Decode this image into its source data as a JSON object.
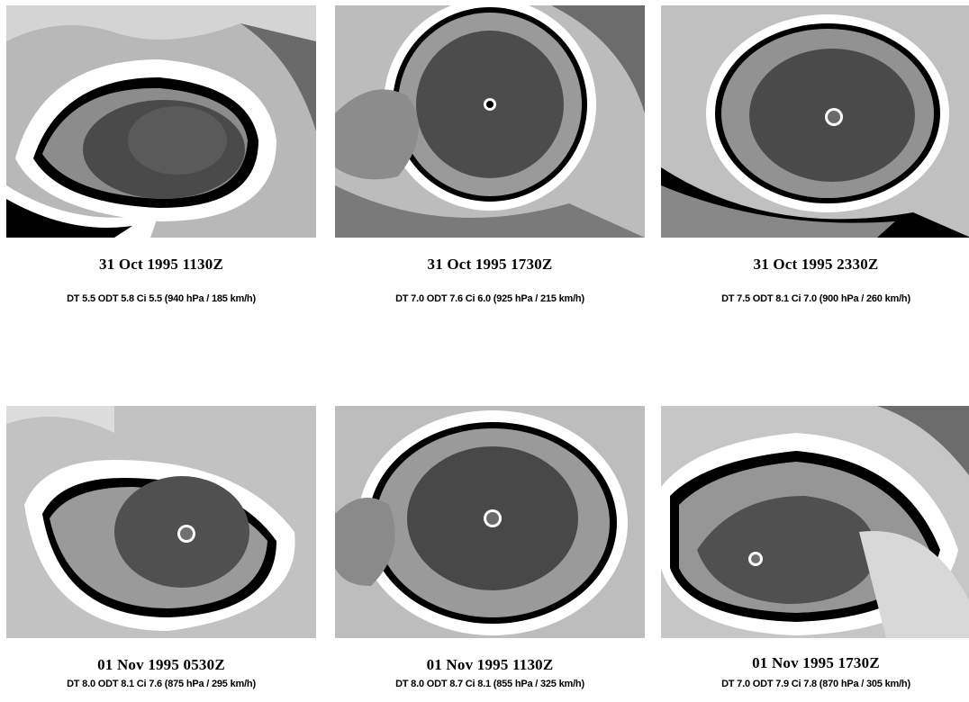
{
  "panels": [
    {
      "date": "31 Oct 1995 1130Z",
      "stats": "DT 5.5   ODT 5.8   Ci 5.5 (940 hPa / 185 km/h)",
      "image_desc": "infrared-satellite-hurricane-cloud-pattern"
    },
    {
      "date": "31 Oct 1995 1730Z",
      "stats": "DT 7.0   ODT 7.6   Ci 6.0 (925 hPa / 215 km/h)",
      "image_desc": "infrared-satellite-hurricane-cloud-pattern"
    },
    {
      "date": "31 Oct 1995 2330Z",
      "stats": "DT 7.5   ODT 8.1   Ci 7.0 (900 hPa / 260 km/h)",
      "image_desc": "infrared-satellite-hurricane-cloud-pattern"
    },
    {
      "date": "01 Nov 1995 0530Z",
      "stats": "DT 8.0   ODT 8.1   Ci 7.6 (875 hPa / 295 km/h)",
      "image_desc": "infrared-satellite-hurricane-cloud-pattern"
    },
    {
      "date": "01 Nov 1995 1130Z",
      "stats": "DT 8.0   ODT 8.7   Ci 8.1 (855 hPa / 325 km/h)",
      "image_desc": "infrared-satellite-hurricane-cloud-pattern"
    },
    {
      "date": "01 Nov 1995 1730Z",
      "stats": "DT 7.0   ODT 7.9   Ci 7.8 (870 hPa / 305 km/h)",
      "image_desc": "infrared-satellite-hurricane-cloud-pattern"
    }
  ],
  "colors": {
    "background": "#ffffff",
    "cloud_gray_light": "#c8c8c8",
    "cloud_gray_mid": "#8c8c8c",
    "cloud_gray_dark": "#4a4a4a",
    "cloud_white": "#ffffff",
    "cloud_black": "#000000"
  }
}
